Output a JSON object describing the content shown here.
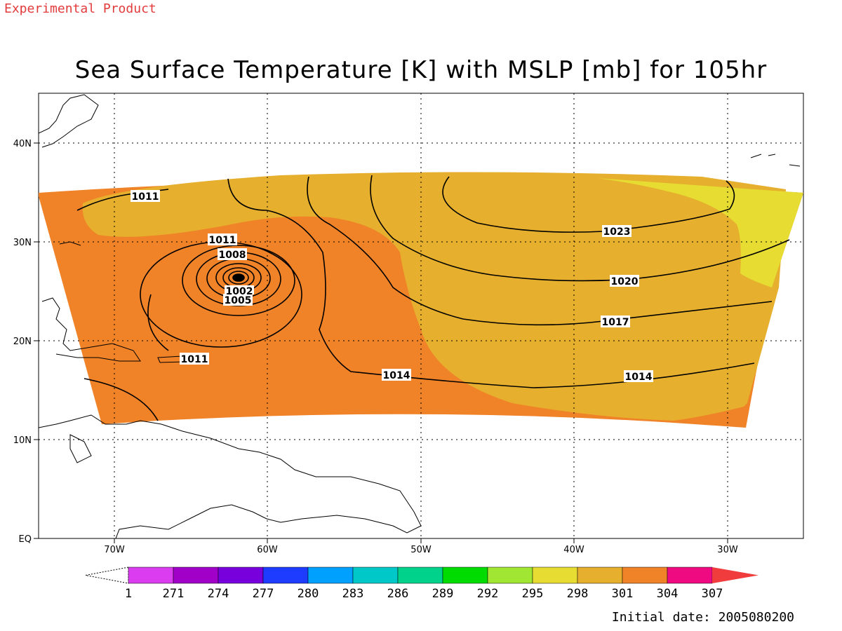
{
  "banner": "Experimental Product",
  "title": "Sea Surface Temperature [K] with MSLP [mb] for 105hr",
  "initial_date": "Initial date: 2005080200",
  "axes": {
    "lon_ticks": [
      "70W",
      "60W",
      "50W",
      "40W",
      "30W"
    ],
    "lat_ticks": [
      "40N",
      "30N",
      "20N",
      "10N",
      "EQ"
    ]
  },
  "isobar_labels": [
    "1011",
    "1011",
    "1008",
    "1005",
    "1002",
    "1011",
    "1014",
    "1014",
    "1017",
    "1020",
    "1023"
  ],
  "colorbar": {
    "labels": [
      "1",
      "271",
      "274",
      "277",
      "280",
      "283",
      "286",
      "289",
      "292",
      "295",
      "298",
      "301",
      "304",
      "307"
    ],
    "colors": [
      "#dc3cf0",
      "#a000c8",
      "#7800dc",
      "#1e3cff",
      "#00a0ff",
      "#00c8c8",
      "#00d28c",
      "#00dc00",
      "#a0e632",
      "#e6dc32",
      "#e6af2d",
      "#f08228",
      "#f00a82",
      "#f03c3c"
    ]
  },
  "colors": {
    "sst_301": "#e6af2d",
    "sst_304": "#f08228",
    "sst_298": "#e6dc32",
    "banner": "#e23b3b"
  }
}
